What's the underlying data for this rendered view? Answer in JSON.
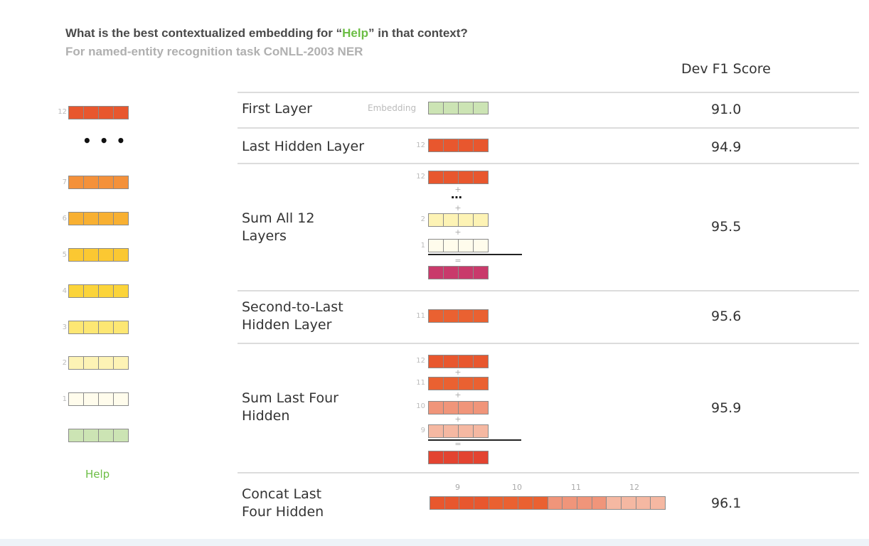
{
  "title": {
    "prefix": "What is the best contextualized embedding for “",
    "highlight": "Help",
    "suffix": "” in that context?"
  },
  "subtitle": "For named-entity recognition task CoNLL-2003 NER",
  "column_header": "Dev F1 Score",
  "colors": {
    "layer12": "#e8572e",
    "layer11": "#ea6131",
    "layer10": "#f0957a",
    "layer9": "#f5b8a2",
    "layer7": "#f4913a",
    "layer6": "#f8b032",
    "layer5": "#fbc832",
    "layer4": "#fbd43a",
    "layer3": "#fde773",
    "layer2": "#fdf3b5",
    "layer1": "#fffcec",
    "embedding": "#cce4b4",
    "sum_all": "#c93a6b",
    "sum_last_four": "#e34431",
    "help_green": "#6cbe45"
  },
  "left_stack": {
    "top_layer": "12",
    "ellipsis": "• • •",
    "layers": [
      "7",
      "6",
      "5",
      "4",
      "3",
      "2",
      "1"
    ],
    "word": "Help"
  },
  "rows": [
    {
      "label": "First Layer",
      "score": "91.0",
      "tag": "Embedding"
    },
    {
      "label": "Last Hidden Layer",
      "score": "94.9",
      "layer": "12"
    },
    {
      "label": "Sum All 12\nLayers",
      "score": "95.5",
      "layers": [
        "12",
        "2",
        "1"
      ],
      "plus": "+",
      "equals": "=",
      "dots": "⋯"
    },
    {
      "label": "Second-to-Last\nHidden Layer",
      "score": "95.6",
      "layer": "11"
    },
    {
      "label": "Sum Last Four\nHidden",
      "score": "95.9",
      "layers": [
        "12",
        "11",
        "10",
        "9"
      ],
      "plus": "+",
      "equals": "="
    },
    {
      "label": "Concat Last\nFour Hidden",
      "score": "96.1",
      "layers": [
        "9",
        "10",
        "11",
        "12"
      ]
    }
  ]
}
